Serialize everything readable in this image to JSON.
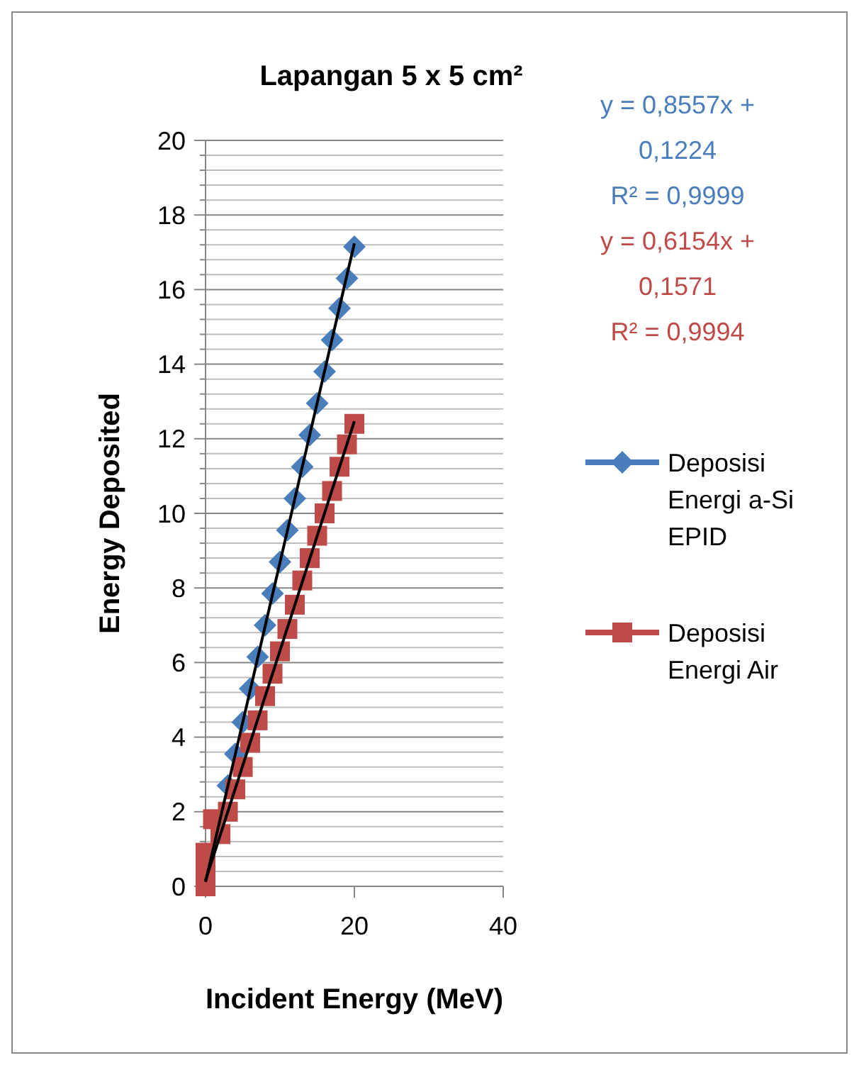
{
  "chart_data": {
    "type": "scatter",
    "title": "Lapangan 5 x 5 cm²",
    "xlabel": "Incident Energy (MeV)",
    "ylabel": "Energy Deposited",
    "xlim": [
      0,
      40
    ],
    "xticks": [
      0,
      20,
      40
    ],
    "ylim": [
      0,
      20
    ],
    "yticks": [
      0,
      {
        "value": 0.4,
        "label": null
      },
      {
        "value": 0.8,
        "label": null
      },
      {
        "value": 1.2,
        "label": null
      },
      {
        "value": 1.6,
        "label": null
      },
      2,
      {
        "value": 2.4,
        "label": null
      },
      {
        "value": 2.8,
        "label": null
      },
      {
        "value": 3.2,
        "label": null
      },
      {
        "value": 3.6,
        "label": null
      },
      4,
      {
        "value": 4.4,
        "label": null
      },
      {
        "value": 4.8,
        "label": null
      },
      {
        "value": 5.2,
        "label": null
      },
      {
        "value": 5.6,
        "label": null
      },
      6,
      {
        "value": 6.4,
        "label": null
      },
      {
        "value": 6.8,
        "label": null
      },
      {
        "value": 7.2,
        "label": null
      },
      {
        "value": 7.6,
        "label": null
      },
      8,
      {
        "value": 8.4,
        "label": null
      },
      {
        "value": 8.8,
        "label": null
      },
      {
        "value": 9.2,
        "label": null
      },
      {
        "value": 9.6,
        "label": null
      },
      10,
      {
        "value": 10.4,
        "label": null
      },
      {
        "value": 10.8,
        "label": null
      },
      {
        "value": 11.2,
        "label": null
      },
      {
        "value": 11.6,
        "label": null
      },
      12,
      {
        "value": 12.4,
        "label": null
      },
      {
        "value": 12.8,
        "label": null
      },
      {
        "value": 13.2,
        "label": null
      },
      {
        "value": 13.6,
        "label": null
      },
      14,
      {
        "value": 14.4,
        "label": null
      },
      {
        "value": 14.8,
        "label": null
      },
      {
        "value": 15.2,
        "label": null
      },
      {
        "value": 15.6,
        "label": null
      },
      16,
      {
        "value": 16.4,
        "label": null
      },
      {
        "value": 16.8,
        "label": null
      },
      {
        "value": 17.2,
        "label": null
      },
      {
        "value": 17.6,
        "label": null
      },
      18,
      {
        "value": 18.4,
        "label": null
      },
      {
        "value": 18.8,
        "label": null
      },
      {
        "value": 19.2,
        "label": null
      },
      {
        "value": 19.6,
        "label": null
      },
      20
    ],
    "grid": "y",
    "legend": "right",
    "series": [
      {
        "name": "Deposisi Energi a-Si EPID",
        "color": "#4a7ebb",
        "marker": "diamond",
        "x": [
          3,
          4,
          5,
          6,
          7,
          8,
          9,
          10,
          11,
          12,
          13,
          14,
          15,
          16,
          17,
          18,
          19,
          20
        ],
        "values": [
          2.7,
          3.55,
          4.4,
          5.3,
          6.15,
          7.0,
          7.85,
          8.7,
          9.55,
          10.4,
          11.25,
          12.1,
          12.95,
          13.8,
          14.65,
          15.5,
          16.3,
          17.15
        ]
      },
      {
        "name": "Deposisi Energi Air",
        "color": "#be4b48",
        "marker": "square",
        "x": [
          0,
          0,
          0,
          1,
          2,
          3,
          4,
          5,
          6,
          7,
          8,
          9,
          10,
          11,
          12,
          13,
          14,
          15,
          16,
          17,
          18,
          19,
          20
        ],
        "values": [
          0.0,
          0.5,
          0.9,
          1.8,
          1.4,
          2.0,
          2.6,
          3.2,
          3.85,
          4.45,
          5.1,
          5.7,
          6.3,
          6.9,
          7.55,
          8.2,
          8.8,
          9.4,
          10.0,
          10.6,
          11.25,
          11.85,
          12.4
        ]
      },
      {
        "type": "line",
        "color": "#000000",
        "marker": "none",
        "x": [
          0,
          20
        ],
        "values": [
          0.12,
          17.24
        ]
      },
      {
        "type": "line",
        "color": "#000000",
        "marker": "none",
        "x": [
          0,
          20
        ],
        "values": [
          0.16,
          12.47
        ]
      }
    ],
    "annotations": [
      "y = 0,8557x + 0,1224",
      "R² = 0,9999",
      "y = 0,6154x + 0,1571",
      "R² = 0,9994"
    ]
  }
}
